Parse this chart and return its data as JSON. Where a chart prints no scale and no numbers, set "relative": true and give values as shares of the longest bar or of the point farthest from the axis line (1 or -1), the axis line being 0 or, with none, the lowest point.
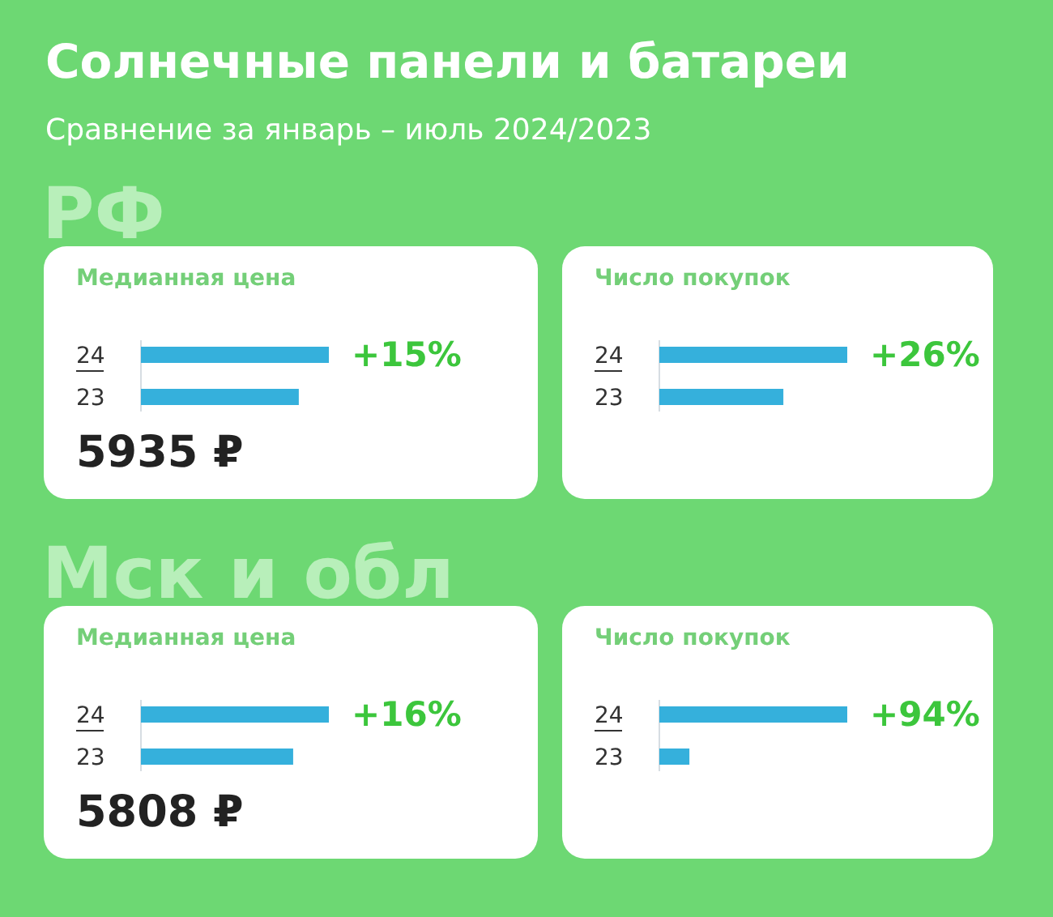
{
  "chart_data": [
    {
      "type": "other",
      "title": "Солнечные панели и батареи",
      "subtitle": "Сравнение за январь – июль 2024/2023",
      "annotations": [
        "РФ",
        "Мск и обл"
      ]
    },
    {
      "type": "bar",
      "orientation": "horizontal",
      "relative": true,
      "title": "Медианная цена",
      "categories": [
        "24",
        "23"
      ],
      "values": [
        1,
        0.84
      ],
      "color": "#35b0dc",
      "annotations": [
        "+15%",
        "5935 ₽"
      ]
    },
    {
      "type": "bar",
      "orientation": "horizontal",
      "relative": true,
      "title": "Число покупок",
      "categories": [
        "24",
        "23"
      ],
      "values": [
        1,
        0.66
      ],
      "color": "#35b0dc",
      "annotations": [
        "+26%"
      ]
    },
    {
      "type": "bar",
      "orientation": "horizontal",
      "relative": true,
      "title": "Медианная цена",
      "categories": [
        "24",
        "23"
      ],
      "values": [
        1,
        0.81
      ],
      "color": "#35b0dc",
      "annotations": [
        "+16%",
        "5808 ₽"
      ]
    },
    {
      "type": "bar",
      "orientation": "horizontal",
      "relative": true,
      "title": "Число покупок",
      "categories": [
        "24",
        "23"
      ],
      "values": [
        1,
        0.16
      ],
      "color": "#35b0dc",
      "annotations": [
        "+94%"
      ]
    }
  ]
}
